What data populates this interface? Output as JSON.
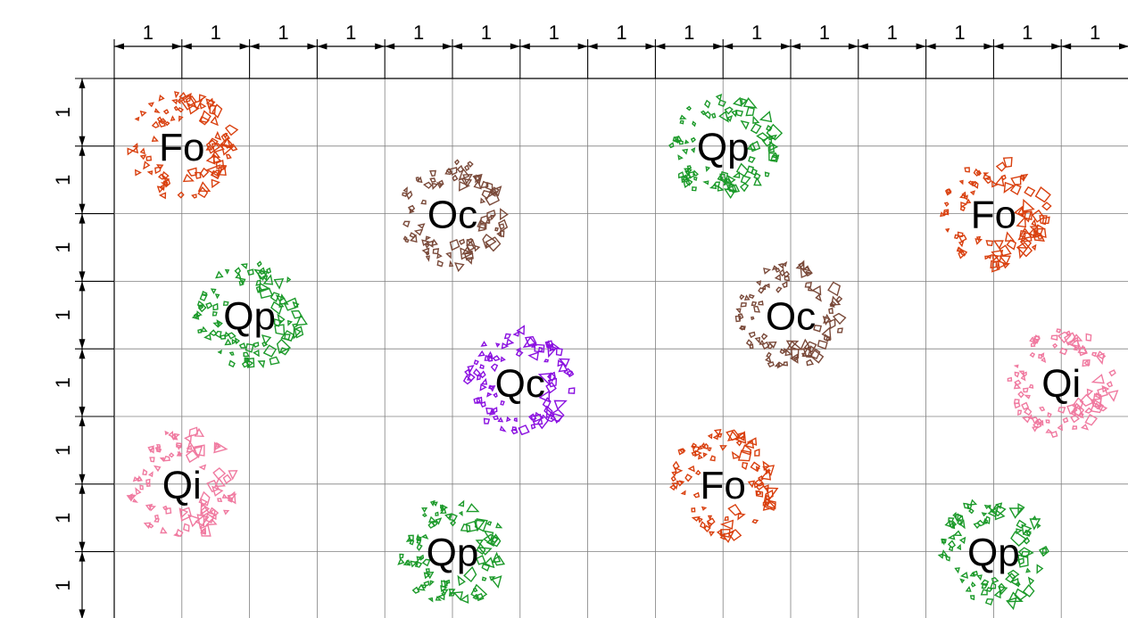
{
  "grid": {
    "columns": 15,
    "rows": 8,
    "line_color": "#808080",
    "column_dimensions": [
      "1",
      "1",
      "1",
      "1",
      "1",
      "1",
      "1",
      "1",
      "1",
      "1",
      "1",
      "1",
      "1",
      "1",
      "1"
    ],
    "row_dimensions": [
      "1",
      "1",
      "1",
      "1",
      "1",
      "1",
      "1",
      "1"
    ]
  },
  "symbols": [
    {
      "label": "Fo",
      "col": 1,
      "row": 1,
      "color": "#d9400f"
    },
    {
      "label": "Qp",
      "col": 9,
      "row": 1,
      "color": "#1c9a2a"
    },
    {
      "label": "Oc",
      "col": 5,
      "row": 2,
      "color": "#7a4a3a"
    },
    {
      "label": "Fo",
      "col": 13,
      "row": 2,
      "color": "#d9400f"
    },
    {
      "label": "Qp",
      "col": 2,
      "row": 3.5,
      "color": "#1c9a2a"
    },
    {
      "label": "Oc",
      "col": 10,
      "row": 3.5,
      "color": "#7a4a3a"
    },
    {
      "label": "Qc",
      "col": 6,
      "row": 4.5,
      "color": "#8a10e0"
    },
    {
      "label": "Qi",
      "col": 14,
      "row": 4.5,
      "color": "#f07aa0"
    },
    {
      "label": "Qi",
      "col": 1,
      "row": 6,
      "color": "#f07aa0"
    },
    {
      "label": "Fo",
      "col": 9,
      "row": 6,
      "color": "#d9400f"
    },
    {
      "label": "Qp",
      "col": 5,
      "row": 7,
      "color": "#1c9a2a"
    },
    {
      "label": "Qp",
      "col": 13,
      "row": 7,
      "color": "#1c9a2a"
    }
  ]
}
